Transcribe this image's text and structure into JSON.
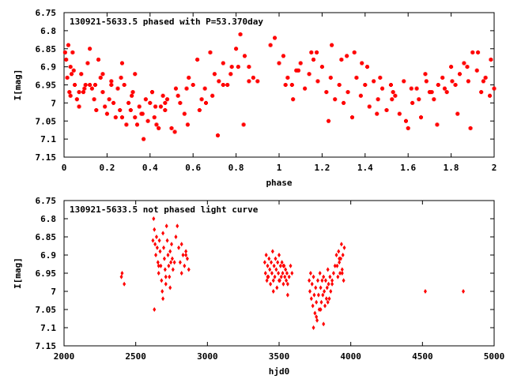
{
  "chart_data": [
    {
      "type": "scatter",
      "title": "130921-5633.5 phased with P=53.370day",
      "xlabel": "phase",
      "ylabel": "I[mag]",
      "xlim": [
        0,
        2
      ],
      "ylim": [
        6.75,
        7.15
      ],
      "y_inverted": true,
      "xticks": [
        0,
        0.2,
        0.4,
        0.6,
        0.8,
        1,
        1.2,
        1.4,
        1.6,
        1.8,
        2
      ],
      "xtick_labels": [
        "0",
        "0.2",
        "0.4",
        "0.6",
        "0.8",
        "1",
        "1.2",
        "1.4",
        "1.6",
        "1.8",
        "2"
      ],
      "yticks": [
        6.75,
        6.8,
        6.85,
        6.9,
        6.95,
        7,
        7.05,
        7.1,
        7.15
      ],
      "ytick_labels": [
        "6.75",
        "6.8",
        "6.85",
        "6.9",
        "6.95",
        "7",
        "7.05",
        "7.1",
        "7.15"
      ],
      "grid": false,
      "marker_color": "#ff0000",
      "series": [
        {
          "x": [
            0.005,
            0.01,
            0.015,
            0.02,
            0.025,
            0.03,
            0.035,
            0.04,
            0.05,
            0.06,
            0.07,
            0.08,
            0.09,
            0.1,
            0.11,
            0.12,
            0.13,
            0.14,
            0.15,
            0.16,
            0.17,
            0.18,
            0.19,
            0.2,
            0.21,
            0.22,
            0.23,
            0.24,
            0.25,
            0.26,
            0.27,
            0.28,
            0.29,
            0.3,
            0.31,
            0.32,
            0.33,
            0.34,
            0.35,
            0.36,
            0.37,
            0.38,
            0.39,
            0.4,
            0.41,
            0.42,
            0.43,
            0.44,
            0.45,
            0.46,
            0.47,
            0.48,
            0.5,
            0.52,
            0.54,
            0.56,
            0.58,
            0.6,
            0.62,
            0.64,
            0.66,
            0.68,
            0.7,
            0.72,
            0.74,
            0.76,
            0.78,
            0.8,
            0.82,
            0.84,
            0.86,
            0.88,
            0.9,
            0.96,
            0.98,
            1.0,
            1.02,
            1.04,
            1.06,
            1.08,
            1.1,
            1.12,
            1.14,
            1.16,
            1.18,
            1.2,
            1.22,
            1.24,
            1.26,
            1.28,
            1.3,
            1.32,
            1.34,
            1.36,
            1.38,
            1.4,
            1.42,
            1.44,
            1.46,
            1.48,
            1.5,
            1.52,
            1.54,
            1.56,
            1.58,
            1.6,
            1.62,
            1.64,
            1.66,
            1.68,
            1.7,
            1.72,
            1.74,
            1.76,
            1.78,
            1.8,
            1.82,
            1.84,
            1.86,
            1.88,
            1.9,
            1.92,
            1.94,
            1.96,
            1.98,
            2.0,
            0.03,
            0.07,
            0.12,
            0.18,
            0.22,
            0.27,
            0.33,
            0.41,
            0.47,
            0.53,
            0.57,
            0.63,
            0.69,
            0.74,
            0.81,
            0.86,
            1.03,
            1.09,
            1.15,
            1.23,
            1.29,
            1.35,
            1.41,
            1.47,
            1.53,
            1.59,
            1.65,
            1.71,
            1.77,
            1.83,
            1.89,
            1.95,
            0.045,
            0.095,
            0.145,
            0.265,
            0.315,
            0.365,
            0.425,
            0.515,
            0.575,
            0.655,
            0.715,
            0.775,
            0.835,
            1.065,
            1.175,
            1.245,
            1.315,
            1.385,
            1.455,
            1.525,
            1.615,
            1.685,
            1.735,
            1.805,
            1.875,
            1.925,
            1.985
          ],
          "y": [
            6.86,
            6.88,
            6.93,
            6.84,
            6.97,
            6.98,
            6.92,
            6.86,
            6.95,
            6.99,
            7.01,
            6.92,
            6.97,
            6.95,
            6.89,
            6.85,
            6.96,
            6.99,
            7.02,
            6.88,
            6.93,
            6.97,
            7.01,
            7.03,
            6.99,
            6.95,
            7.0,
            7.04,
            6.96,
            7.02,
            7.04,
            6.95,
            7.06,
            7.0,
            7.02,
            6.97,
            7.04,
            7.06,
            7.01,
            7.03,
            7.1,
            6.99,
            7.05,
            7.0,
            6.97,
            7.04,
            7.06,
            7.07,
            7.01,
            6.98,
            7.02,
            6.99,
            7.07,
            6.96,
            7.0,
            7.03,
            6.93,
            6.95,
            6.88,
            6.99,
            7.0,
            6.86,
            6.92,
            6.94,
            6.89,
            6.95,
            6.9,
            6.85,
            6.81,
            6.87,
            6.9,
            6.93,
            6.94,
            6.84,
            6.82,
            6.89,
            6.87,
            6.93,
            6.95,
            6.91,
            6.89,
            6.96,
            6.92,
            6.88,
            6.94,
            6.9,
            6.97,
            6.93,
            6.99,
            6.95,
            7.0,
            6.97,
            7.04,
            6.93,
            6.98,
            6.95,
            7.01,
            6.94,
            6.99,
            6.96,
            7.02,
            6.95,
            6.98,
            7.03,
            6.94,
            7.07,
            7.0,
            6.96,
            7.04,
            6.92,
            6.97,
            6.99,
            6.95,
            6.93,
            6.97,
            6.9,
            6.95,
            6.92,
            6.89,
            6.94,
            6.86,
            6.91,
            6.97,
            6.93,
            6.98,
            6.96,
            6.9,
            6.97,
            6.95,
            6.92,
            6.94,
            6.89,
            6.92,
            6.97,
            7.0,
            6.98,
            6.96,
            7.02,
            6.98,
            6.95,
            6.9,
            6.94,
            6.95,
            6.91,
            6.86,
            7.05,
            6.88,
            6.86,
            6.9,
            6.93,
            6.97,
            7.05,
            6.99,
            6.97,
            6.96,
            7.03,
            7.07,
            6.94,
            6.91,
            6.96,
            6.95,
            6.93,
            6.98,
            7.03,
            7.01,
            7.08,
            7.06,
            6.96,
            7.09,
            6.92,
            7.06,
            6.99,
            6.86,
            6.84,
            6.87,
            6.89,
            7.03,
            6.99,
            6.96,
            6.94,
            7.06,
            6.94,
            6.9,
            6.86,
            6.88
          ]
        }
      ]
    },
    {
      "type": "scatter",
      "title": "130921-5633.5 not phased light curve",
      "xlabel": "hjd0",
      "ylabel": "I[mag]",
      "xlim": [
        2000,
        5000
      ],
      "ylim": [
        6.75,
        7.15
      ],
      "y_inverted": true,
      "xticks": [
        2000,
        2500,
        3000,
        3500,
        4000,
        4500,
        5000
      ],
      "xtick_labels": [
        "2000",
        "2500",
        "3000",
        "3500",
        "4000",
        "4500",
        "5000"
      ],
      "yticks": [
        6.75,
        6.8,
        6.85,
        6.9,
        6.95,
        7,
        7.05,
        7.1,
        7.15
      ],
      "ytick_labels": [
        "6.75",
        "6.8",
        "6.85",
        "6.9",
        "6.95",
        "7",
        "7.05",
        "7.1",
        "7.15"
      ],
      "grid": false,
      "marker_color": "#ff0000",
      "series": [
        {
          "x": [
            2400,
            2405,
            2420,
            2620,
            2625,
            2630,
            2635,
            2640,
            2645,
            2650,
            2655,
            2660,
            2665,
            2670,
            2675,
            2680,
            2685,
            2690,
            2695,
            2700,
            2705,
            2710,
            2715,
            2720,
            2725,
            2730,
            2735,
            2740,
            2745,
            2750,
            2755,
            2760,
            2780,
            2790,
            2800,
            2810,
            2820,
            2830,
            2840,
            2850,
            2860,
            2870,
            3400,
            3405,
            3410,
            3415,
            3420,
            3425,
            3430,
            3435,
            3440,
            3445,
            3450,
            3455,
            3460,
            3465,
            3470,
            3475,
            3480,
            3485,
            3490,
            3495,
            3500,
            3505,
            3510,
            3515,
            3520,
            3525,
            3530,
            3535,
            3540,
            3545,
            3550,
            3555,
            3560,
            3570,
            3580,
            3590,
            3710,
            3715,
            3720,
            3725,
            3730,
            3735,
            3740,
            3745,
            3750,
            3755,
            3760,
            3765,
            3770,
            3775,
            3780,
            3785,
            3790,
            3795,
            3800,
            3805,
            3810,
            3815,
            3820,
            3825,
            3830,
            3835,
            3840,
            3845,
            3850,
            3855,
            3860,
            3870,
            3880,
            3890,
            3900,
            3905,
            3910,
            3915,
            3920,
            3925,
            3930,
            3935,
            3940,
            3945,
            3950,
            3955,
            4520,
            4785,
            2630,
            2660,
            2690,
            2710,
            2740,
            2770,
            2820,
            2850,
            3420,
            3460,
            3500,
            3530,
            3560,
            3740,
            3760,
            3790,
            3810,
            3840,
            3870,
            3920,
            3940
          ],
          "y": [
            6.96,
            6.95,
            6.98,
            6.86,
            6.8,
            6.83,
            6.87,
            6.9,
            6.85,
            6.88,
            6.92,
            6.95,
            6.86,
            6.89,
            6.93,
            6.97,
            7.0,
            6.84,
            6.88,
            6.91,
            6.94,
            6.98,
            6.82,
            6.86,
            6.9,
            6.93,
            6.96,
            6.89,
            6.92,
            6.87,
            6.91,
            6.94,
            6.85,
            6.82,
            6.88,
            6.92,
            6.95,
            6.9,
            6.93,
            6.89,
            6.91,
            6.94,
            6.92,
            6.95,
            6.9,
            6.97,
            6.93,
            6.96,
            6.91,
            6.94,
            6.98,
            6.92,
            6.95,
            6.89,
            6.97,
            6.93,
            6.96,
            6.91,
            6.94,
            6.99,
            6.92,
            6.95,
            6.9,
            6.97,
            6.93,
            6.96,
            6.92,
            6.95,
            6.98,
            6.93,
            6.96,
            6.94,
            6.97,
            6.95,
            6.98,
            6.96,
            6.93,
            6.95,
            6.97,
            7.0,
            6.95,
            7.02,
            6.98,
            7.04,
            6.96,
            7.01,
            7.06,
            6.99,
            7.03,
            7.08,
            6.97,
            7.01,
            7.05,
            6.95,
            6.99,
            7.03,
            6.97,
            7.01,
            6.96,
            7.0,
            7.04,
            6.97,
            7.02,
            6.99,
            6.94,
            6.98,
            7.02,
            6.96,
            7.0,
            6.97,
            6.95,
            6.93,
            6.9,
            6.93,
            6.96,
            6.89,
            6.92,
            6.95,
            6.91,
            6.87,
            6.94,
            6.9,
            6.97,
            6.88,
            7.0,
            7.0,
            7.05,
            6.93,
            7.02,
            6.96,
            6.99,
            6.92,
            6.87,
            6.9,
            6.96,
            7.0,
            6.97,
            6.93,
            7.01,
            7.1,
            7.07,
            7.05,
            7.09,
            7.03,
            6.98,
            6.91,
            6.95
          ]
        }
      ]
    }
  ]
}
